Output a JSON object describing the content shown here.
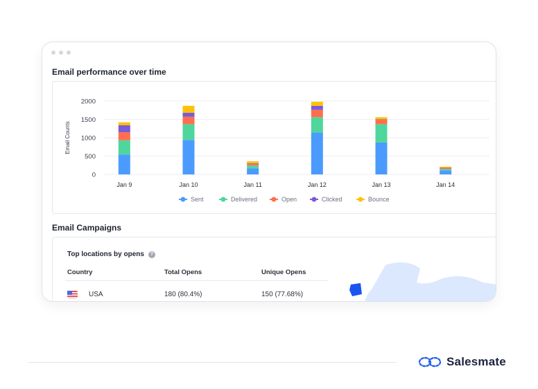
{
  "window": {
    "controls": [
      "dot",
      "dot",
      "dot"
    ]
  },
  "performance": {
    "title": "Email performance over time"
  },
  "chart_data": {
    "type": "bar",
    "stacked": true,
    "ylabel": "Email Counts",
    "xlabel": "",
    "ylim": [
      0,
      2000
    ],
    "yticks": [
      0,
      500,
      1000,
      1500,
      2000
    ],
    "grid": true,
    "legend": "bottom",
    "categories": [
      "Jan 9",
      "Jan 10",
      "Jan 11",
      "Jan 12",
      "Jan 13",
      "Jan 14"
    ],
    "series": [
      {
        "name": "Sent",
        "color": "#4b9bff",
        "values": [
          540,
          940,
          160,
          1140,
          870,
          110
        ]
      },
      {
        "name": "Delivered",
        "color": "#4fd69c",
        "values": [
          390,
          430,
          80,
          420,
          500,
          40
        ]
      },
      {
        "name": "Open",
        "color": "#ff6f4f",
        "values": [
          220,
          200,
          40,
          200,
          120,
          40
        ]
      },
      {
        "name": "Clicked",
        "color": "#7a5ad8",
        "values": [
          190,
          110,
          20,
          110,
          10,
          0
        ]
      },
      {
        "name": "Bounce",
        "color": "#ffc107",
        "values": [
          80,
          190,
          60,
          110,
          60,
          20
        ]
      }
    ]
  },
  "campaigns": {
    "title": "Email Campaigns",
    "locations_title": "Top locations by opens",
    "info_icon": "info-icon",
    "columns": [
      "Country",
      "Total Opens",
      "Unique Opens"
    ],
    "rows": [
      {
        "country": "USA",
        "flag": "us-flag-icon",
        "total_opens": "180 (80.4%)",
        "unique_opens": "150 (77.68%)"
      }
    ]
  },
  "brand": {
    "name": "Salesmate",
    "color": "#2563eb"
  }
}
